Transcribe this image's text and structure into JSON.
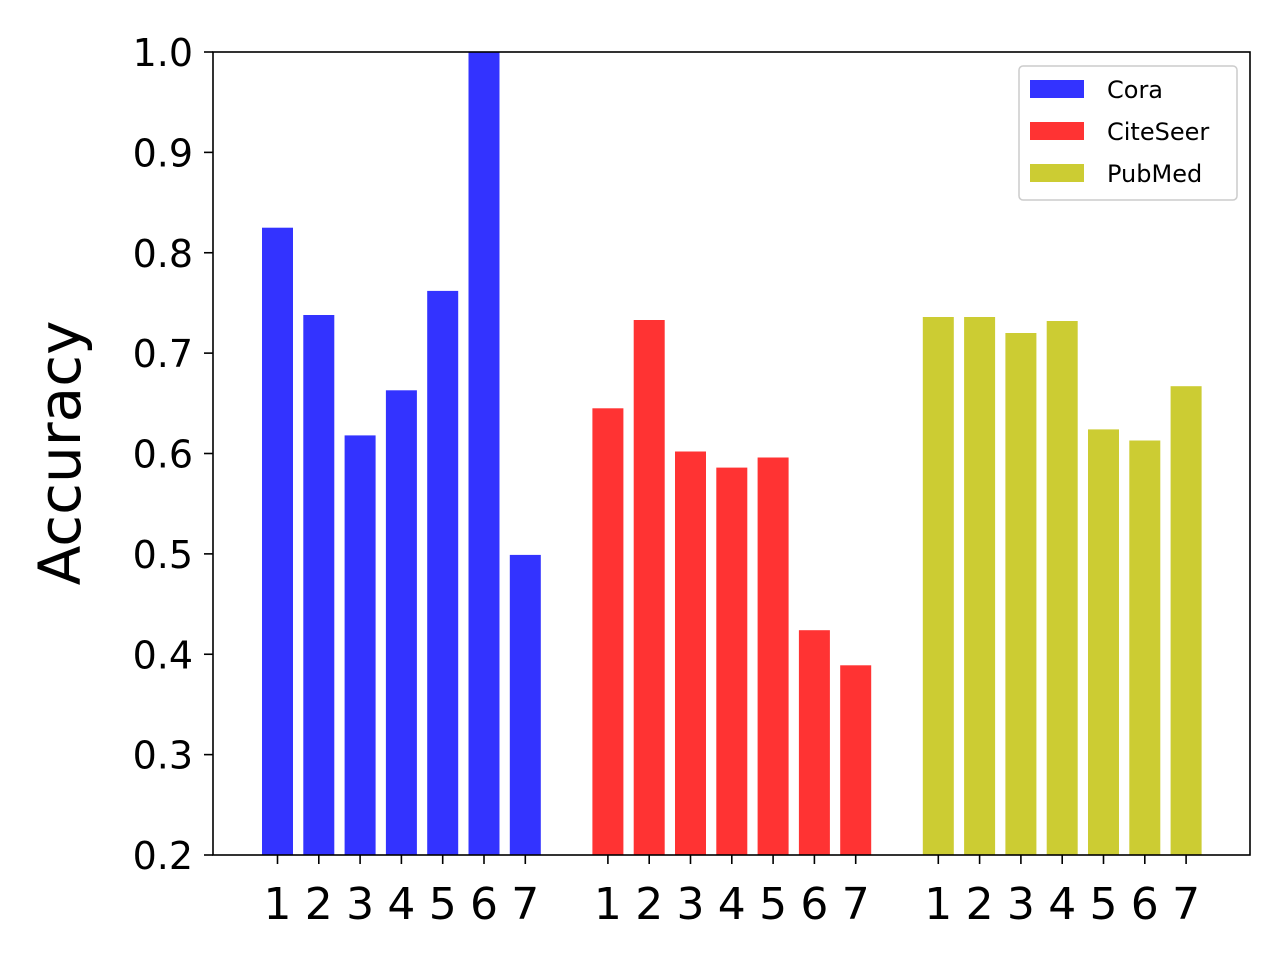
{
  "chart_data": {
    "type": "bar",
    "ylabel": "Accuracy",
    "ylim": [
      0.2,
      1.0
    ],
    "yticks": [
      "0.2",
      "0.3",
      "0.4",
      "0.5",
      "0.6",
      "0.7",
      "0.8",
      "0.9",
      "1.0"
    ],
    "categories": [
      "1",
      "2",
      "3",
      "4",
      "5",
      "6",
      "7"
    ],
    "legend_position": "top-right",
    "grid": false,
    "series": [
      {
        "name": "Cora",
        "color": "#3333ff",
        "values": [
          0.825,
          0.738,
          0.618,
          0.663,
          0.762,
          1.0,
          0.499
        ]
      },
      {
        "name": "CiteSeer",
        "color": "#ff3333",
        "values": [
          0.645,
          0.733,
          0.602,
          0.586,
          0.596,
          0.424,
          0.389
        ]
      },
      {
        "name": "PubMed",
        "color": "#cccc33",
        "values": [
          0.736,
          0.736,
          0.72,
          0.732,
          0.624,
          0.613,
          0.667
        ]
      }
    ]
  }
}
